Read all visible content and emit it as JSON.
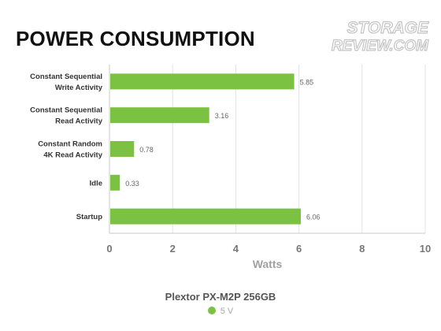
{
  "title": "POWER CONSUMPTION",
  "logo": {
    "line1": "STORAGE",
    "line2": "REVIEW.COM"
  },
  "colors": {
    "bar": "#7cc242",
    "grid": "#e3e3e3",
    "axis": "#c8c8c8",
    "tick": "#777777",
    "label": "#333333",
    "value": "#666666"
  },
  "chart_data": {
    "type": "bar",
    "orientation": "horizontal",
    "title": "POWER CONSUMPTION",
    "categories": [
      [
        "Constant Sequential",
        "Write Activity"
      ],
      [
        "Constant Sequential",
        "Read Activity"
      ],
      [
        "Constant Random",
        "4K Read Activity"
      ],
      [
        "Idle"
      ],
      [
        "Startup"
      ]
    ],
    "series": [
      {
        "name": "5 V",
        "values": [
          5.85,
          3.16,
          0.78,
          0.33,
          6.06
        ]
      }
    ],
    "value_labels": [
      "5.85",
      "3.16",
      "0.78",
      "0.33",
      "6.06"
    ],
    "xlabel": "Watts",
    "xlim": [
      0,
      10
    ],
    "xticks": [
      0,
      2,
      4,
      6,
      8,
      10
    ],
    "grid": true,
    "legend_title": "Plextor PX-M2P 256GB",
    "legend_position": "bottom"
  }
}
